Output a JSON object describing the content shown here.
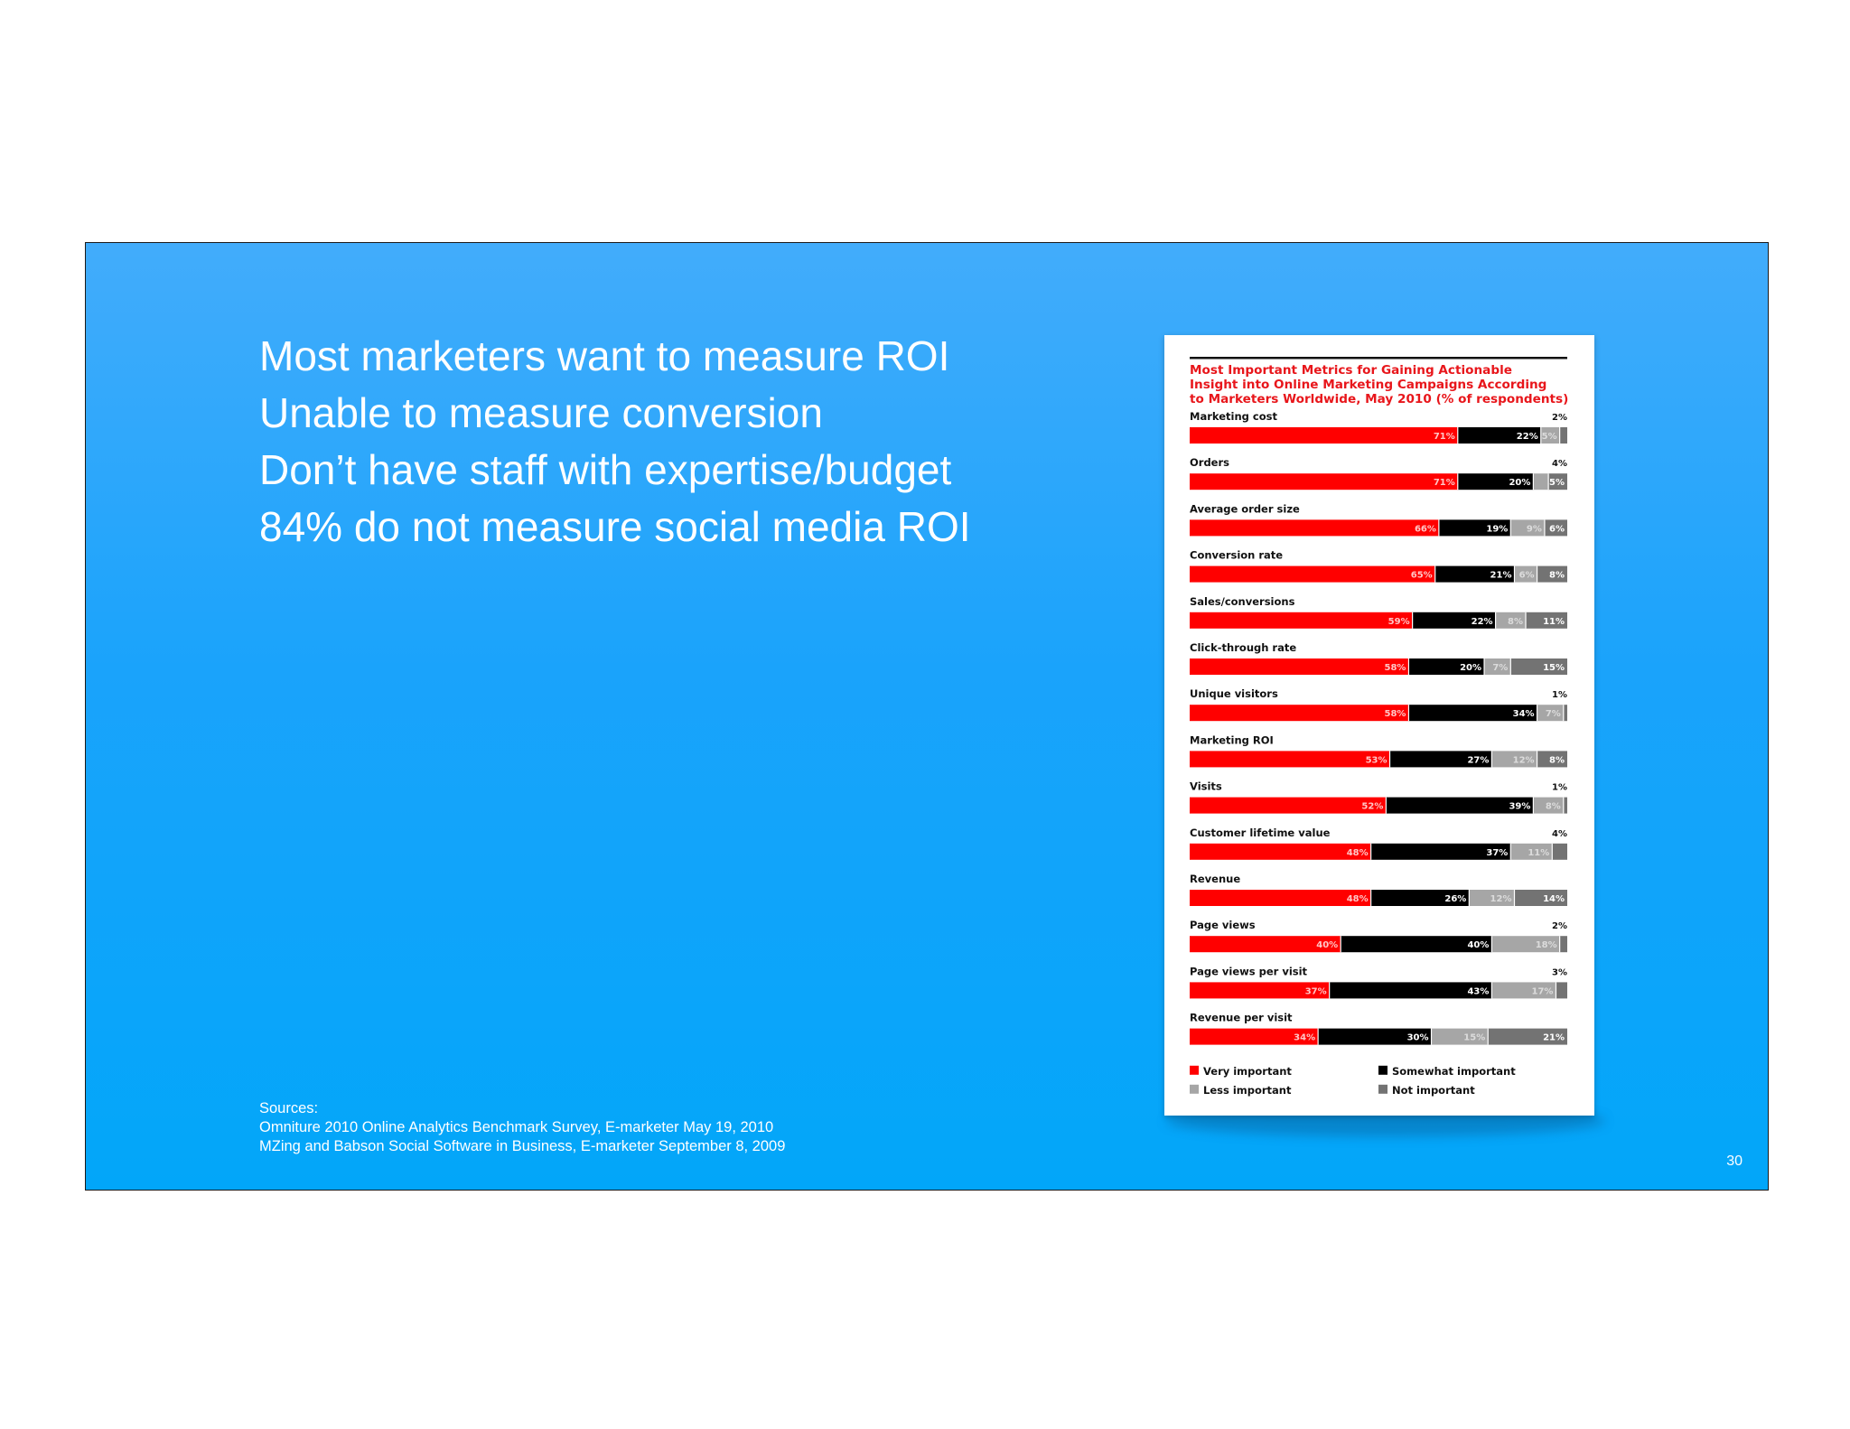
{
  "slide": {
    "bullets": [
      "Most marketers want to measure ROI",
      "Unable to measure conversion",
      "Don’t have staff with expertise/budget",
      "84% do not measure social media ROI"
    ],
    "sources": [
      "Sources:",
      "Omniture 2010 Online Analytics Benchmark Survey, E-marketer May 19, 2010",
      "MZing and Babson Social Software in Business, E-marketer September 8, 2009"
    ],
    "slide_number": "30"
  },
  "colors": {
    "very": "#ff0000",
    "somewhat": "#000000",
    "less": "#a6a6a6",
    "not": "#737373"
  },
  "chart_data": {
    "type": "bar",
    "stacked": true,
    "orientation": "horizontal",
    "title": [
      "Most Important Metrics for Gaining Actionable",
      "Insight into Online Marketing Campaigns According",
      "to Marketers Worldwide, May 2010 (% of respondents)"
    ],
    "categories": [
      "Marketing cost",
      "Orders",
      "Average order size",
      "Conversion rate",
      "Sales/conversions",
      "Click-through rate",
      "Unique visitors",
      "Marketing ROI",
      "Visits",
      "Customer lifetime value",
      "Revenue",
      "Page views",
      "Page views per visit",
      "Revenue per visit"
    ],
    "series": [
      {
        "name": "Very important",
        "values": [
          71,
          71,
          66,
          65,
          59,
          58,
          58,
          53,
          52,
          48,
          48,
          40,
          37,
          34
        ]
      },
      {
        "name": "Somewhat important",
        "values": [
          22,
          20,
          19,
          21,
          22,
          20,
          34,
          27,
          39,
          37,
          26,
          40,
          43,
          30
        ]
      },
      {
        "name": "Less important",
        "values": [
          5,
          4,
          9,
          6,
          8,
          7,
          7,
          12,
          8,
          11,
          12,
          18,
          17,
          15
        ]
      },
      {
        "name": "Not important",
        "values": [
          2,
          5,
          6,
          8,
          11,
          15,
          1,
          8,
          1,
          4,
          14,
          2,
          3,
          21
        ]
      }
    ],
    "xlim": [
      0,
      100
    ],
    "legend_placement": "bottom"
  }
}
